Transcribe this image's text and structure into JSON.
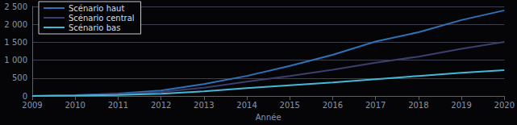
{
  "chart_data": {
    "type": "line",
    "x_label": "Année",
    "categories": [
      "2009",
      "2010",
      "2011",
      "2012",
      "2013",
      "2014",
      "2015",
      "2016",
      "2017",
      "2018",
      "2019",
      "2020"
    ],
    "series": [
      {
        "name": "Scénario haut",
        "color": "#2f72b8",
        "values": [
          0,
          20,
          70,
          150,
          330,
          560,
          840,
          1150,
          1520,
          1780,
          2120,
          2390
        ]
      },
      {
        "name": "Scénario central",
        "color": "#3b3f70",
        "values": [
          0,
          15,
          50,
          110,
          230,
          400,
          560,
          730,
          930,
          1100,
          1320,
          1510
        ]
      },
      {
        "name": "Scénario bas",
        "color": "#45b8d8",
        "values": [
          0,
          10,
          30,
          60,
          130,
          220,
          300,
          380,
          470,
          560,
          650,
          720
        ]
      }
    ],
    "ylim": [
      0,
      2500
    ],
    "yticks": [
      0,
      500,
      {
        "value": 1000,
        "label": "1 000"
      },
      {
        "value": 1500,
        "label": "1 500"
      },
      {
        "value": 2000,
        "label": "2 000"
      },
      {
        "value": 2500,
        "label": "2 500"
      }
    ],
    "grid": true,
    "legend": "upper left"
  }
}
